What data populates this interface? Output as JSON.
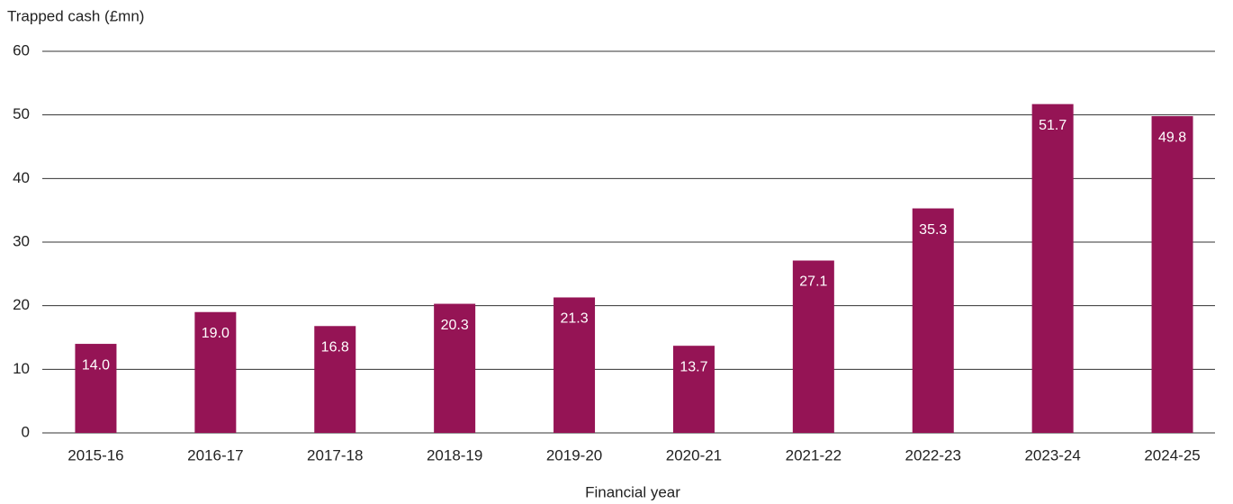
{
  "chart_data": {
    "type": "bar",
    "y_axis_label": "Trapped cash (£mn)",
    "x_axis_label": "Financial year",
    "categories": [
      "2015-16",
      "2016-17",
      "2017-18",
      "2018-19",
      "2019-20",
      "2020-21",
      "2021-22",
      "2022-23",
      "2023-24",
      "2024-25"
    ],
    "values": [
      14.0,
      19.0,
      16.8,
      20.3,
      21.3,
      13.7,
      27.1,
      35.3,
      51.7,
      49.8
    ],
    "value_labels": [
      "14.0",
      "19.0",
      "16.8",
      "20.3",
      "21.3",
      "13.7",
      "27.1",
      "35.3",
      "51.7",
      "49.8"
    ],
    "color": "#951455",
    "ylim": [
      0,
      60
    ],
    "yticks": [
      0,
      10,
      20,
      30,
      40,
      50,
      60
    ],
    "grid": true
  }
}
